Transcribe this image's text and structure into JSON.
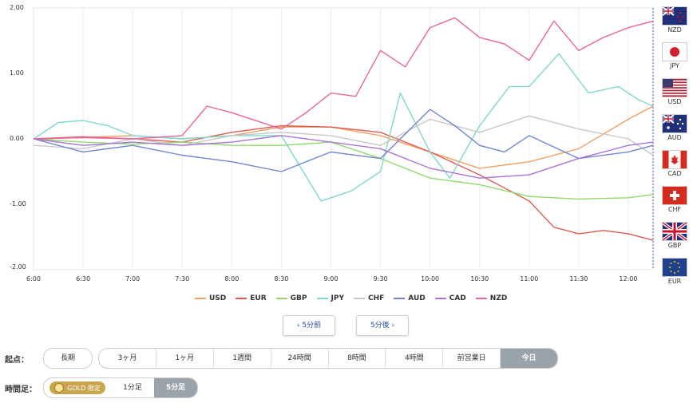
{
  "chart_data": {
    "type": "line",
    "x_ticks": [
      "6:00",
      "6:30",
      "7:00",
      "7:30",
      "8:00",
      "8:30",
      "9:00",
      "9:30",
      "10:00",
      "10:30",
      "11:00",
      "11:30",
      "12:00"
    ],
    "y_ticks": [
      "2.00",
      "1.00",
      "0.00",
      "-1.00",
      "-2.00"
    ],
    "ylim": [
      -2.0,
      2.0
    ],
    "xlim": [
      0,
      6.25
    ],
    "grid": "vertical",
    "series": [
      {
        "name": "USD",
        "color": "#f0a062",
        "x": [
          0,
          0.5,
          1,
          1.5,
          2,
          2.5,
          3,
          3.5,
          4,
          4.5,
          5,
          5.5,
          6,
          6.25
        ],
        "y": [
          0.0,
          0.02,
          0.05,
          0.0,
          0.05,
          0.18,
          0.18,
          0.05,
          -0.2,
          -0.45,
          -0.35,
          -0.15,
          0.3,
          0.5
        ]
      },
      {
        "name": "EUR",
        "color": "#e05a50",
        "x": [
          0,
          0.5,
          1,
          1.5,
          2,
          2.5,
          3,
          3.5,
          4,
          4.5,
          5,
          5.25,
          5.5,
          5.75,
          6,
          6.25
        ],
        "y": [
          0.0,
          0.03,
          0.0,
          -0.05,
          0.1,
          0.2,
          0.18,
          0.1,
          -0.2,
          -0.55,
          -0.95,
          -1.35,
          -1.45,
          -1.4,
          -1.45,
          -1.55
        ]
      },
      {
        "name": "GBP",
        "color": "#8fdc6a",
        "x": [
          0,
          0.5,
          1,
          1.5,
          2,
          2.5,
          3,
          3.5,
          4,
          4.5,
          5,
          5.5,
          6,
          6.25
        ],
        "y": [
          0.0,
          -0.05,
          -0.08,
          -0.05,
          -0.1,
          -0.1,
          -0.05,
          -0.3,
          -0.6,
          -0.7,
          -0.88,
          -0.92,
          -0.9,
          -0.85
        ]
      },
      {
        "name": "JPY",
        "color": "#7fd8cc",
        "x": [
          0,
          0.25,
          0.5,
          0.75,
          1,
          1.5,
          2,
          2.5,
          2.9,
          3.2,
          3.5,
          3.7,
          4,
          4.2,
          4.5,
          4.8,
          5,
          5.3,
          5.6,
          5.9,
          6.1,
          6.25
        ],
        "y": [
          0.0,
          0.25,
          0.28,
          0.2,
          0.05,
          0.0,
          0.05,
          0.05,
          -0.95,
          -0.8,
          -0.5,
          0.7,
          -0.2,
          -0.6,
          0.2,
          0.8,
          0.8,
          1.3,
          0.7,
          0.8,
          0.6,
          0.5
        ]
      },
      {
        "name": "CHF",
        "color": "#c8c8c8",
        "x": [
          0,
          0.5,
          1,
          1.5,
          2,
          2.5,
          3,
          3.5,
          4,
          4.5,
          5,
          5.5,
          6,
          6.25
        ],
        "y": [
          -0.1,
          -0.15,
          0.0,
          -0.1,
          0.05,
          0.1,
          0.05,
          -0.1,
          0.3,
          0.1,
          0.35,
          0.15,
          0.0,
          -0.25
        ]
      },
      {
        "name": "AUD",
        "color": "#6f86cf",
        "x": [
          0,
          0.5,
          1,
          1.5,
          2,
          2.5,
          3,
          3.5,
          4,
          4.25,
          4.5,
          4.75,
          5,
          5.5,
          6,
          6.25
        ],
        "y": [
          0.0,
          -0.2,
          -0.1,
          -0.25,
          -0.35,
          -0.5,
          -0.2,
          -0.3,
          0.45,
          0.2,
          -0.1,
          -0.2,
          0.05,
          -0.3,
          -0.2,
          -0.1
        ]
      },
      {
        "name": "CAD",
        "color": "#a974d6",
        "x": [
          0,
          0.5,
          1,
          1.5,
          2,
          2.5,
          3,
          3.5,
          4,
          4.5,
          5,
          5.5,
          6,
          6.25
        ],
        "y": [
          0.0,
          -0.1,
          -0.05,
          -0.1,
          -0.05,
          0.05,
          -0.05,
          -0.15,
          -0.45,
          -0.6,
          -0.55,
          -0.3,
          -0.1,
          -0.05
        ]
      },
      {
        "name": "NZD",
        "color": "#e8649e",
        "x": [
          0,
          0.5,
          1,
          1.5,
          1.75,
          2,
          2.5,
          2.75,
          3,
          3.25,
          3.5,
          3.75,
          4,
          4.25,
          4.5,
          4.75,
          5,
          5.25,
          5.5,
          5.75,
          6,
          6.25
        ],
        "y": [
          0.0,
          0.02,
          0.0,
          0.05,
          0.5,
          0.4,
          0.15,
          0.4,
          0.7,
          0.65,
          1.35,
          1.1,
          1.7,
          1.85,
          1.55,
          1.45,
          1.2,
          1.8,
          1.35,
          1.55,
          1.7,
          1.8
        ]
      }
    ]
  },
  "flags": [
    {
      "code": "NZD",
      "icon": "nz-flag-icon"
    },
    {
      "code": "JPY",
      "icon": "jp-flag-icon"
    },
    {
      "code": "USD",
      "icon": "us-flag-icon"
    },
    {
      "code": "AUD",
      "icon": "au-flag-icon"
    },
    {
      "code": "CAD",
      "icon": "ca-flag-icon"
    },
    {
      "code": "CHF",
      "icon": "ch-flag-icon"
    },
    {
      "code": "GBP",
      "icon": "gb-flag-icon"
    },
    {
      "code": "EUR",
      "icon": "eu-flag-icon"
    }
  ],
  "nav": {
    "prev": "‹ 5分前",
    "next": "5分後 ›"
  },
  "period": {
    "label": "起点：",
    "first": "長期",
    "options": [
      "3ヶ月",
      "1ヶ月",
      "1週間",
      "24時間",
      "8時間",
      "4時間",
      "前営業日",
      "今日"
    ],
    "selected": "今日"
  },
  "timeframe": {
    "label": "時間足：",
    "gold_label": "GOLD 限定",
    "options": [
      "1分足",
      "5分足"
    ],
    "selected": "5分足"
  }
}
